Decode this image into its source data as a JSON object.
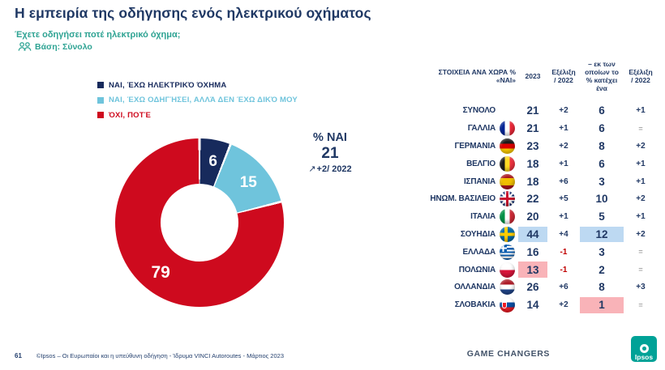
{
  "header": {
    "title": "Η εμπειρία της οδήγησης ενός ηλεκτρικού οχήματος",
    "question": "Έχετε οδηγήσει ποτέ ηλεκτρικό όχημα;",
    "base": "Βάση: Σύνολο"
  },
  "chart_data": {
    "type": "pie",
    "subtype": "donut",
    "labels": [
      "ΝΑΙ, ΈΧΩ ΗΛΕΚΤΡΙΚΌ ΌΧΗΜΑ",
      "ΝΑΙ, ΈΧΩ ΟΔΗΓΉΣΕΙ, ΑΛΛΆ ΔΕΝ ΈΧΩ ΔΙΚΌ ΜΟΥ",
      "ΌΧΙ, ΠΟΤΈ"
    ],
    "values": [
      6,
      15,
      79
    ],
    "colors": [
      "#172A5C",
      "#6FC4DC",
      "#CE0A1E"
    ],
    "legend_position": "top-left",
    "callout": {
      "label": "% ΝΑΙ",
      "value": 21,
      "change_vs_2022": "+2"
    }
  },
  "callout": {
    "label": "% ΝΑΙ",
    "value": "21",
    "arrow": "↗",
    "change": "+2/ 2022"
  },
  "table": {
    "header": {
      "col_country": "ΣΤΟΙΧΕΙΑ ΑΝΑ ΧΩΡΑ % «ΝΑΙ»",
      "col_2023": "2023",
      "col_evol": "Εξέλιξη / 2022",
      "col_own": "– εκ των οποίων το % κατέχει ένα",
      "col_own_evol": "Εξέλιξη / 2022"
    },
    "highlight_colors": {
      "high": "#BDD9F2",
      "low": "#F9B3B8"
    },
    "rows": [
      {
        "country": "ΣΥΝΟΛΟ",
        "flag": null,
        "y2023": "21",
        "evol": "+2",
        "own": "6",
        "evol2": "+1"
      },
      {
        "country": "ΓΑΛΛΙΑ",
        "flag": "fr",
        "y2023": "21",
        "evol": "+1",
        "own": "6",
        "evol2": "="
      },
      {
        "country": "ΓΕΡΜΑΝΙΑ",
        "flag": "de",
        "y2023": "23",
        "evol": "+2",
        "own": "8",
        "evol2": "+2"
      },
      {
        "country": "ΒΕΛΓΙΟ",
        "flag": "be",
        "y2023": "18",
        "evol": "+1",
        "own": "6",
        "evol2": "+1"
      },
      {
        "country": "ΙΣΠΑΝΙΑ",
        "flag": "es",
        "y2023": "18",
        "evol": "+6",
        "own": "3",
        "evol2": "+1"
      },
      {
        "country": "ΗΝΩΜ. ΒΑΣΙΛΕΙΟ",
        "flag": "gb",
        "y2023": "22",
        "evol": "+5",
        "own": "10",
        "evol2": "+2"
      },
      {
        "country": "ΙΤΑΛΙΑ",
        "flag": "it",
        "y2023": "20",
        "evol": "+1",
        "own": "5",
        "evol2": "+1"
      },
      {
        "country": "ΣΟΥΗΔΙΑ",
        "flag": "se",
        "y2023": "44",
        "evol": "+4",
        "own": "12",
        "evol2": "+2",
        "hl_y2023": "blue",
        "hl_own": "blue"
      },
      {
        "country": "ΕΛΛΑΔΑ",
        "flag": "gr",
        "y2023": "16",
        "evol": "-1",
        "own": "3",
        "evol2": "="
      },
      {
        "country": "ΠΟΛΩΝΙΑ",
        "flag": "pl",
        "y2023": "13",
        "evol": "-1",
        "own": "2",
        "evol2": "=",
        "hl_y2023": "pink"
      },
      {
        "country": "ΟΛΛΑΝΔΙΑ",
        "flag": "nl",
        "y2023": "26",
        "evol": "+6",
        "own": "8",
        "evol2": "+3"
      },
      {
        "country": "ΣΛΟΒΑΚΙΑ",
        "flag": "sk",
        "y2023": "14",
        "evol": "+2",
        "own": "1",
        "evol2": "=",
        "hl_own": "pink"
      }
    ]
  },
  "footer": {
    "page_number": "61",
    "source": "©Ipsos – Οι Ευρωπαίοι και η υπεύθυνη οδήγηση - Ίδρυμα VINCI Autoroutes - Μάρτιος  2023",
    "brand": "GAME CHANGERS",
    "logo_text": "Ipsos"
  }
}
